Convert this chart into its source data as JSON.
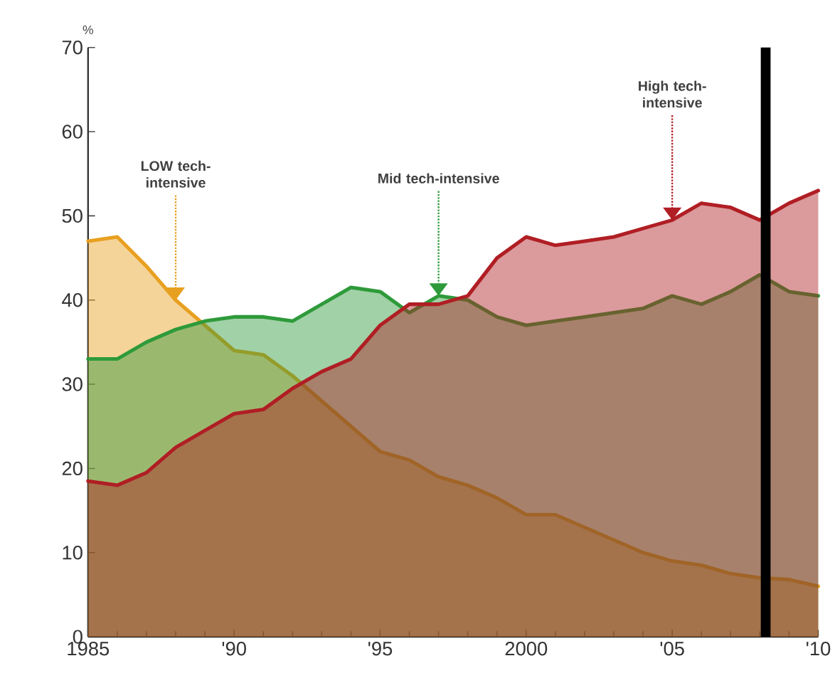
{
  "chart_data": {
    "type": "area",
    "ylabel": "%",
    "x": [
      1985,
      1986,
      1987,
      1988,
      1989,
      1990,
      1991,
      1992,
      1993,
      1994,
      1995,
      1996,
      1997,
      1998,
      1999,
      2000,
      2001,
      2002,
      2003,
      2004,
      2005,
      2006,
      2007,
      2008,
      2009,
      2010
    ],
    "series": [
      {
        "color": "#e8a020",
        "values": [
          47,
          47.5,
          44,
          40,
          37,
          34,
          33.5,
          31,
          28,
          25,
          22,
          21,
          19,
          18,
          16.5,
          14.5,
          14.5,
          13,
          11.5,
          10,
          9,
          8.5,
          7.5,
          7,
          6.8,
          6
        ]
      },
      {
        "color": "#2e9a3a",
        "values": [
          33,
          33,
          35,
          36.5,
          37.5,
          38,
          38,
          37.5,
          39.5,
          41.5,
          41,
          38.5,
          40.5,
          40,
          38,
          37,
          37.5,
          38,
          38.5,
          39,
          40.5,
          39.5,
          41,
          43,
          41,
          40.5
        ]
      },
      {
        "color": "#b01e24",
        "values": [
          18.5,
          18,
          19.5,
          22.5,
          24.5,
          26.5,
          27,
          29.5,
          31.5,
          33,
          37,
          39.5,
          39.5,
          40.5,
          45,
          47.5,
          46.5,
          47,
          47.5,
          48.5,
          49.5,
          51.5,
          51,
          49.5,
          51.5,
          53
        ]
      }
    ],
    "xlim": [
      1985,
      2010
    ],
    "xticks": [
      1985,
      {
        "value": 1990,
        "label": "'90"
      },
      {
        "value": 1995,
        "label": "'95"
      },
      2000,
      {
        "value": 2005,
        "label": "'05"
      },
      {
        "value": 2010,
        "label": "'10"
      }
    ],
    "ylim": [
      0,
      70
    ],
    "yticks": [
      0,
      10,
      20,
      30,
      40,
      50,
      60,
      70
    ],
    "ref_lines": [
      {
        "axis": "x",
        "value": 2008.2,
        "color": "#000000"
      }
    ],
    "annotations": [
      {
        "text": "LOW tech-intensive",
        "x": 1988,
        "y": 40
      },
      {
        "text": "Mid tech-intensive",
        "x": 1997,
        "y": 40.5
      },
      {
        "text": "High tech-intensive",
        "x": 2005,
        "y": 49.5
      }
    ]
  }
}
